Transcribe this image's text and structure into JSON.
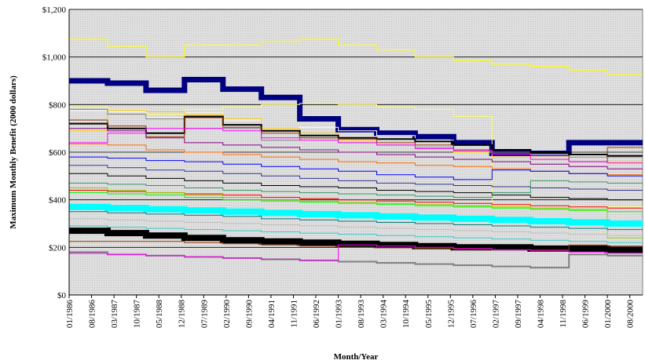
{
  "chart_data": {
    "type": "line",
    "title": "",
    "xlabel": "Month/Year",
    "ylabel": "Maximum Monthly Benefit (2000 dollars)",
    "ylim": [
      0,
      1200
    ],
    "y_ticks": [
      "$0",
      "$200",
      "$400",
      "$600",
      "$800",
      "$1,000",
      "$1,200"
    ],
    "x_ticks": [
      "01/1986",
      "08/1986",
      "03/1987",
      "10/1987",
      "05/1988",
      "12/1988",
      "07/1989",
      "02/1990",
      "09/1990",
      "04/1991",
      "11/1991",
      "06/1992",
      "01/1993",
      "08/1993",
      "03/1994",
      "10/1994",
      "05/1995",
      "12/1995",
      "07/1996",
      "02/1997",
      "09/1997",
      "04/1998",
      "11/1998",
      "06/1999",
      "01/2000",
      "08/2000"
    ],
    "x_start": "01/1986",
    "x_end": "12/2000",
    "grid": true,
    "legend": "none",
    "background": "#d9d9d9",
    "series": [
      {
        "color": "#ffff00",
        "width": 1,
        "values": [
          1075,
          1045,
          1000,
          1050,
          1050,
          1065,
          1075,
          1050,
          1030,
          1000,
          985,
          970,
          960,
          945,
          925
        ]
      },
      {
        "color": "#000080",
        "width": 7,
        "values": [
          900,
          890,
          860,
          905,
          865,
          830,
          740,
          695,
          680,
          665,
          640,
          595,
          595,
          640,
          640
        ]
      },
      {
        "color": "#ffff66",
        "width": 1,
        "values": [
          790,
          780,
          760,
          780,
          790,
          800,
          805,
          800,
          790,
          780,
          750,
          375,
          375,
          370,
          370
        ]
      },
      {
        "color": "#ffffff",
        "width": 1,
        "values": [
          775,
          770,
          745,
          765,
          735,
          700,
          705,
          690,
          670,
          650,
          630,
          600,
          590,
          585,
          580
        ]
      },
      {
        "color": "#ffcc00",
        "width": 1,
        "values": [
          690,
          775,
          770,
          760,
          740,
          700,
          680,
          650,
          630,
          615,
          600,
          580,
          570,
          560,
          560
        ]
      },
      {
        "color": "#808080",
        "width": 1,
        "values": [
          780,
          760,
          740,
          700,
          700,
          650,
          660,
          640,
          630,
          620,
          610,
          600,
          600,
          580,
          580
        ]
      },
      {
        "color": "#000000",
        "width": 2,
        "values": [
          720,
          700,
          680,
          750,
          715,
          690,
          670,
          660,
          655,
          645,
          630,
          610,
          600,
          590,
          585
        ]
      },
      {
        "color": "#993300",
        "width": 1,
        "values": [
          735,
          710,
          665,
          745,
          705,
          680,
          660,
          655,
          640,
          630,
          610,
          595,
          585,
          560,
          620
        ]
      },
      {
        "color": "#ff00ff",
        "width": 1,
        "values": [
          640,
          680,
          700,
          700,
          690,
          660,
          650,
          640,
          630,
          615,
          605,
          590,
          570,
          560,
          555
        ]
      },
      {
        "color": "#ff6600",
        "width": 1,
        "values": [
          635,
          630,
          610,
          600,
          590,
          580,
          570,
          560,
          555,
          545,
          540,
          530,
          520,
          510,
          505
        ]
      },
      {
        "color": "#800080",
        "width": 1,
        "values": [
          700,
          690,
          660,
          640,
          630,
          620,
          610,
          600,
          590,
          580,
          570,
          560,
          550,
          540,
          530
        ]
      },
      {
        "color": "#0000ff",
        "width": 1,
        "values": [
          580,
          575,
          565,
          560,
          550,
          540,
          530,
          520,
          505,
          495,
          485,
          525,
          520,
          510,
          500
        ]
      },
      {
        "color": "#333399",
        "width": 1,
        "values": [
          545,
          535,
          525,
          520,
          510,
          500,
          490,
          480,
          470,
          465,
          460,
          455,
          450,
          445,
          440
        ]
      },
      {
        "color": "#000000",
        "width": 1,
        "values": [
          510,
          500,
          490,
          480,
          470,
          460,
          455,
          450,
          440,
          435,
          430,
          420,
          410,
          405,
          400
        ]
      },
      {
        "color": "#339966",
        "width": 1,
        "values": [
          470,
          465,
          460,
          450,
          440,
          435,
          430,
          425,
          420,
          415,
          410,
          430,
          480,
          475,
          470
        ]
      },
      {
        "color": "#ff0000",
        "width": 1,
        "values": [
          440,
          435,
          430,
          425,
          420,
          410,
          405,
          400,
          395,
          390,
          385,
          380,
          375,
          370,
          365
        ]
      },
      {
        "color": "#00ff00",
        "width": 1,
        "values": [
          430,
          425,
          420,
          410,
          400,
          395,
          390,
          385,
          380,
          375,
          370,
          365,
          360,
          355,
          350
        ]
      },
      {
        "color": "#99cc00",
        "width": 1,
        "values": [
          450,
          440,
          430,
          420,
          410,
          400,
          395,
          390,
          385,
          380,
          375,
          370,
          365,
          360,
          240
        ]
      },
      {
        "color": "#00ffff",
        "width": 8,
        "values": [
          370,
          365,
          360,
          355,
          350,
          345,
          340,
          335,
          330,
          325,
          320,
          315,
          310,
          305,
          300
        ]
      },
      {
        "color": "#008080",
        "width": 1,
        "values": [
          350,
          345,
          340,
          335,
          330,
          320,
          315,
          310,
          305,
          300,
          295,
          290,
          285,
          280,
          275
        ]
      },
      {
        "color": "#33cccc",
        "width": 1,
        "values": [
          290,
          285,
          280,
          275,
          270,
          265,
          260,
          255,
          250,
          245,
          240,
          235,
          230,
          225,
          220
        ]
      },
      {
        "color": "#c0c0c0",
        "width": 1,
        "values": [
          320,
          315,
          310,
          305,
          300,
          295,
          290,
          285,
          280,
          275,
          270,
          265,
          260,
          255,
          250
        ]
      },
      {
        "color": "#000000",
        "width": 8,
        "values": [
          270,
          260,
          250,
          240,
          230,
          225,
          220,
          215,
          210,
          205,
          200,
          200,
          195,
          195,
          190
        ]
      },
      {
        "color": "#993300",
        "width": 1,
        "values": [
          225,
          225,
          225,
          220,
          215,
          210,
          205,
          200,
          198,
          195,
          192,
          190,
          190,
          210,
          205
        ]
      },
      {
        "color": "#808080",
        "width": 2,
        "values": [
          180,
          170,
          165,
          160,
          155,
          150,
          145,
          140,
          135,
          130,
          125,
          120,
          115,
          170,
          165
        ]
      },
      {
        "color": "#ff00ff",
        "width": 1,
        "values": [
          175,
          170,
          165,
          160,
          155,
          150,
          145,
          210,
          205,
          200,
          195,
          190,
          185,
          180,
          175
        ]
      }
    ]
  }
}
